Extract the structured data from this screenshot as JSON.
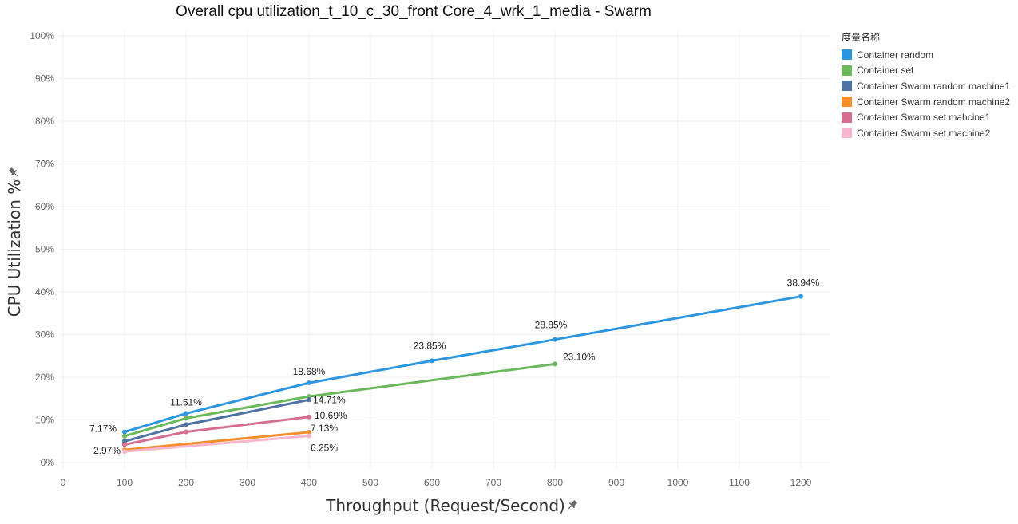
{
  "chart_data": {
    "type": "line",
    "title": "Overall cpu utilization_t_10_c_30_front Core_4_wrk_1_media - Swarm",
    "xlabel": "Throughput (Request/Second)",
    "ylabel": "CPU Utilization %",
    "xlim": [
      0,
      1200
    ],
    "ylim": [
      0,
      100
    ],
    "x_ticks": [
      "0",
      "100",
      "200",
      "300",
      "400",
      "500",
      "600",
      "700",
      "800",
      "900",
      "1000",
      "1100",
      "1200"
    ],
    "y_ticks": [
      "0%",
      "10%",
      "20%",
      "30%",
      "40%",
      "50%",
      "60%",
      "70%",
      "80%",
      "90%",
      "100%"
    ],
    "legend_title": "度量名称",
    "legend_position": "right",
    "grid": true,
    "series": [
      {
        "name": "Container random",
        "color": "#2e96df",
        "x": [
          100,
          200,
          400,
          600,
          800,
          1200
        ],
        "y": [
          7.17,
          11.51,
          18.68,
          23.85,
          28.85,
          38.94
        ],
        "labels": [
          "7.17%",
          "11.51%",
          "18.68%",
          "23.85%",
          "28.85%",
          "38.94%"
        ]
      },
      {
        "name": "Container set",
        "color": "#6cb85c",
        "x": [
          100,
          200,
          400,
          800
        ],
        "y": [
          6.2,
          10.4,
          15.5,
          23.1
        ],
        "labels": [
          "",
          "",
          "",
          "23.10%"
        ]
      },
      {
        "name": "Container Swarm random machine1",
        "color": "#4e74a3",
        "x": [
          100,
          200,
          400
        ],
        "y": [
          5.0,
          8.9,
          14.71
        ],
        "labels": [
          "",
          "",
          "14.71%"
        ]
      },
      {
        "name": "Container Swarm random machine2",
        "color": "#f28e2b",
        "x": [
          100,
          400
        ],
        "y": [
          2.97,
          7.13
        ],
        "labels": [
          "2.97%",
          "7.13%"
        ]
      },
      {
        "name": "Container Swarm set mahcine1",
        "color": "#d4708f",
        "x": [
          100,
          200,
          400
        ],
        "y": [
          4.2,
          7.2,
          10.69
        ],
        "labels": [
          "",
          "",
          "10.69%"
        ]
      },
      {
        "name": "Container Swarm set machine2",
        "color": "#f7b6ce",
        "x": [
          100,
          400
        ],
        "y": [
          2.6,
          6.25
        ],
        "labels": [
          "",
          "6.25%"
        ]
      }
    ]
  }
}
